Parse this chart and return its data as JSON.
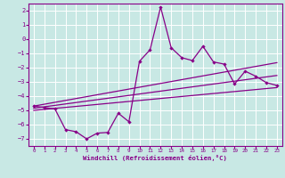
{
  "xlabel": "Windchill (Refroidissement éolien,°C)",
  "background_color": "#c8e8e4",
  "grid_color": "#ffffff",
  "line_color": "#880088",
  "xlim": [
    -0.5,
    23.5
  ],
  "ylim": [
    -7.5,
    2.5
  ],
  "yticks": [
    2,
    1,
    0,
    -1,
    -2,
    -3,
    -4,
    -5,
    -6,
    -7
  ],
  "xticks": [
    0,
    1,
    2,
    3,
    4,
    5,
    6,
    7,
    8,
    9,
    10,
    11,
    12,
    13,
    14,
    15,
    16,
    17,
    18,
    19,
    20,
    21,
    22,
    23
  ],
  "main_series": [
    [
      0,
      -4.7
    ],
    [
      1,
      -4.8
    ],
    [
      2,
      -4.9
    ],
    [
      3,
      -6.35
    ],
    [
      4,
      -6.5
    ],
    [
      5,
      -7.0
    ],
    [
      6,
      -6.6
    ],
    [
      7,
      -6.55
    ],
    [
      8,
      -5.2
    ],
    [
      9,
      -5.8
    ],
    [
      10,
      -1.55
    ],
    [
      11,
      -0.75
    ],
    [
      12,
      2.25
    ],
    [
      13,
      -0.6
    ],
    [
      14,
      -1.3
    ],
    [
      15,
      -1.5
    ],
    [
      16,
      -0.5
    ],
    [
      17,
      -1.6
    ],
    [
      18,
      -1.75
    ],
    [
      19,
      -3.15
    ],
    [
      20,
      -2.25
    ],
    [
      21,
      -2.6
    ],
    [
      22,
      -3.05
    ],
    [
      23,
      -3.25
    ]
  ],
  "upper_line": [
    [
      0,
      -4.7
    ],
    [
      23,
      -1.65
    ]
  ],
  "lower_line": [
    [
      0,
      -5.0
    ],
    [
      23,
      -3.4
    ]
  ],
  "mid_line": [
    [
      0,
      -4.85
    ],
    [
      23,
      -2.55
    ]
  ]
}
